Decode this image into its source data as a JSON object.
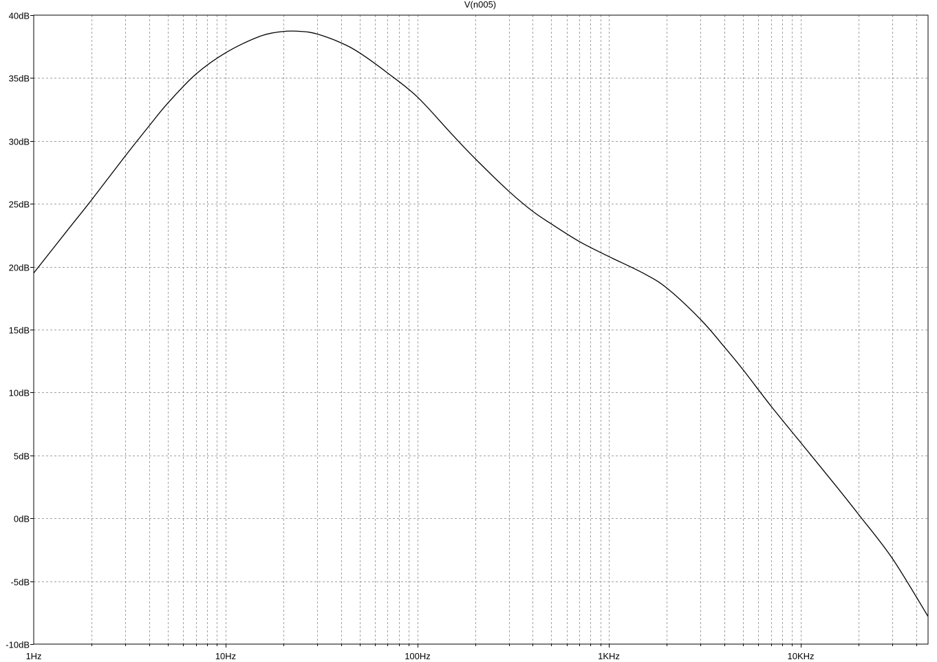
{
  "chart_data": {
    "type": "line",
    "title": "V(n005)",
    "xlabel": "",
    "ylabel": "",
    "xscale": "log",
    "xlim": [
      1,
      46000
    ],
    "ylim": [
      -10,
      40
    ],
    "x_ticks": [
      {
        "value": 1,
        "label": "1Hz"
      },
      {
        "value": 10,
        "label": "10Hz"
      },
      {
        "value": 100,
        "label": "100Hz"
      },
      {
        "value": 1000,
        "label": "1KHz"
      },
      {
        "value": 10000,
        "label": "10KHz"
      }
    ],
    "y_ticks": [
      {
        "value": 40,
        "label": "40dB"
      },
      {
        "value": 35,
        "label": "35dB"
      },
      {
        "value": 30,
        "label": "30dB"
      },
      {
        "value": 25,
        "label": "25dB"
      },
      {
        "value": 20,
        "label": "20dB"
      },
      {
        "value": 15,
        "label": "15dB"
      },
      {
        "value": 10,
        "label": "10dB"
      },
      {
        "value": 5,
        "label": "5dB"
      },
      {
        "value": 0,
        "label": "0dB"
      },
      {
        "value": -5,
        "label": "-5dB"
      },
      {
        "value": -10,
        "label": "-10dB"
      }
    ],
    "grid": true,
    "legend": "none",
    "line_color": "#000000",
    "series": [
      {
        "x": [
          1,
          1.5,
          2,
          3,
          4,
          5,
          7,
          10,
          15,
          20,
          25,
          30,
          40,
          50,
          70,
          100,
          150,
          200,
          300,
          400,
          500,
          700,
          1000,
          1500,
          2000,
          3000,
          4000,
          5000,
          7000,
          10000,
          15000,
          20000,
          30000,
          46000
        ],
        "y": [
          19.5,
          22.9,
          25.3,
          28.8,
          31.2,
          33.0,
          35.3,
          37.0,
          38.3,
          38.7,
          38.7,
          38.5,
          37.8,
          37.0,
          35.4,
          33.5,
          30.6,
          28.6,
          26.0,
          24.4,
          23.4,
          22.0,
          20.8,
          19.5,
          18.3,
          15.8,
          13.6,
          11.8,
          8.9,
          6.0,
          2.7,
          0.3,
          -3.2,
          -7.8
        ]
      }
    ]
  }
}
